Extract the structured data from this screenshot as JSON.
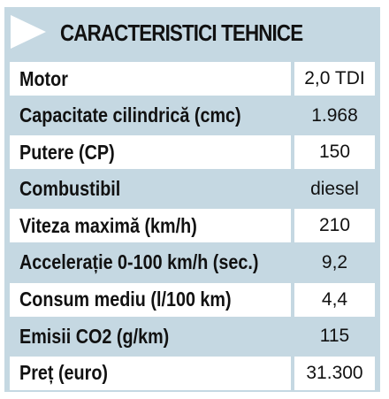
{
  "title": "CARACTERISTICI TEHNICE",
  "specs": [
    {
      "label": "Motor",
      "value": "2,0 TDI"
    },
    {
      "label": "Capacitate cilindrică (cmc)",
      "value": "1.968"
    },
    {
      "label": "Putere (CP)",
      "value": "150"
    },
    {
      "label": "Combustibil",
      "value": "diesel"
    },
    {
      "label": "Viteza maximă (km/h)",
      "value": "210"
    },
    {
      "label": "Accelerație 0-100 km/h (sec.)",
      "value": "9,2"
    },
    {
      "label": "Consum mediu (l/100 km)",
      "value": "4,4"
    },
    {
      "label": "Emisii CO2 (g/km)",
      "value": "115"
    },
    {
      "label": "Preț (euro)",
      "value": "31.300"
    }
  ],
  "colors": {
    "panel": "#c5d8e2",
    "row_alt": "#ffffff",
    "text": "#111111"
  }
}
